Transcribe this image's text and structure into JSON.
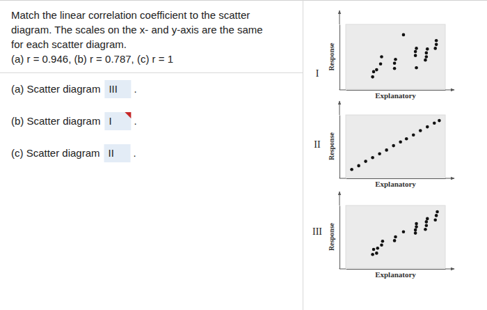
{
  "question": {
    "lines": [
      "Match the linear correlation coefficient to the scatter",
      "diagram. The scales on the x- and y-axis are the same",
      "for each scatter diagram.",
      "(a) r = 0.946, (b) r = 0.787, (c) r = 1"
    ]
  },
  "answers": [
    {
      "label": "(a) Scatter diagram",
      "choice": "III",
      "end": ".",
      "flagged": false
    },
    {
      "label": "(b) Scatter diagram",
      "choice": "I",
      "end": ".",
      "flagged": true
    },
    {
      "label": "(c) Scatter diagram",
      "choice": "II",
      "end": ".",
      "flagged": false
    }
  ],
  "chart_data": [
    {
      "type": "scatter",
      "title": "I",
      "x_label": "Explanatory",
      "y_label": "Response",
      "x": [
        2.7,
        2.8,
        3.1,
        3.5,
        3.6,
        4.9,
        4.9,
        5.0,
        5.8,
        7.0,
        7.0,
        7.1,
        7.1,
        8.0,
        8.1,
        8.1,
        8.2,
        9.0,
        9.1,
        9.1
      ],
      "values": [
        1.9,
        2.7,
        3.0,
        3.9,
        5.0,
        3.2,
        4.0,
        4.6,
        8.4,
        5.2,
        5.8,
        6.3,
        3.3,
        4.5,
        5.0,
        5.6,
        6.2,
        6.3,
        6.9,
        7.5
      ],
      "xlim": [
        0,
        10
      ],
      "ylim": [
        0,
        10
      ],
      "tick_labels": false,
      "grid": false,
      "color": "#111111",
      "marker": "circle"
    },
    {
      "type": "scatter",
      "title": "II",
      "x_label": "Explanatory",
      "y_label": "Response",
      "x": [
        0.6,
        1.3,
        2.0,
        2.7,
        3.4,
        4.1,
        4.8,
        5.5,
        6.1,
        6.8,
        7.5,
        8.2,
        8.9,
        9.4
      ],
      "values": [
        1.3,
        1.9,
        2.6,
        3.2,
        3.8,
        4.4,
        5.1,
        5.7,
        6.2,
        6.8,
        7.5,
        8.1,
        8.7,
        9.1
      ],
      "xlim": [
        0,
        10
      ],
      "ylim": [
        0,
        10
      ],
      "tick_labels": false,
      "grid": false,
      "color": "#111111",
      "marker": "circle"
    },
    {
      "type": "scatter",
      "title": "III",
      "x_label": "Explanatory",
      "y_label": "Response",
      "x": [
        2.7,
        2.8,
        3.1,
        3.2,
        3.6,
        3.7,
        4.9,
        5.0,
        5.8,
        7.0,
        7.0,
        7.1,
        7.1,
        8.0,
        8.1,
        8.1,
        8.2,
        9.0,
        9.1,
        9.2
      ],
      "values": [
        2.2,
        3.0,
        2.4,
        3.2,
        3.7,
        4.3,
        4.4,
        5.0,
        5.8,
        5.6,
        6.1,
        6.6,
        7.1,
        6.2,
        6.8,
        7.4,
        7.9,
        7.7,
        8.4,
        9.0
      ],
      "xlim": [
        0,
        10
      ],
      "ylim": [
        0,
        10
      ],
      "tick_labels": false,
      "grid": false,
      "color": "#111111",
      "marker": "circle"
    }
  ]
}
